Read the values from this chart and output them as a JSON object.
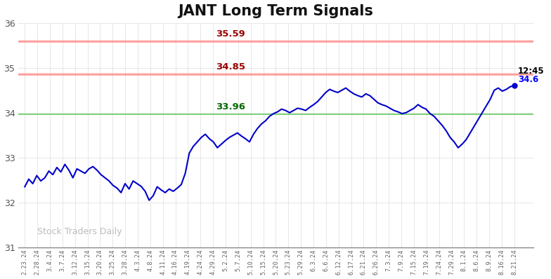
{
  "title": "JANT Long Term Signals",
  "title_fontsize": 15,
  "title_fontweight": "bold",
  "ylim": [
    31,
    36
  ],
  "yticks": [
    31,
    32,
    33,
    34,
    35,
    36
  ],
  "line_color": "#0000cc",
  "line_width": 1.5,
  "hline_green": 33.96,
  "hline_red1": 34.85,
  "hline_red2": 35.59,
  "hline_green_color": "#66cc66",
  "hline_red_color": "#ff9999",
  "hline_red_linecolor": "#ff8888",
  "label_33_96": "33.96",
  "label_34_85": "34.85",
  "label_35_59": "35.59",
  "label_green_color": "#006600",
  "label_red_color": "#990000",
  "annotation_time": "12:45",
  "annotation_price": "34.6",
  "annotation_color_time": "#000000",
  "annotation_color_price": "#0000ff",
  "watermark": "Stock Traders Daily",
  "watermark_color": "#bbbbbb",
  "background_color": "#ffffff",
  "grid_color": "#dddddd",
  "x_labels": [
    "2.23.24",
    "2.28.24",
    "3.4.24",
    "3.7.24",
    "3.12.24",
    "3.15.24",
    "3.20.24",
    "3.25.24",
    "3.28.24",
    "4.3.24",
    "4.8.24",
    "4.11.24",
    "4.16.24",
    "4.19.24",
    "4.24.24",
    "4.29.24",
    "5.2.24",
    "5.7.24",
    "5.10.24",
    "5.15.24",
    "5.20.24",
    "5.23.24",
    "5.29.24",
    "6.3.24",
    "6.6.24",
    "6.12.24",
    "6.17.24",
    "6.21.24",
    "6.26.24",
    "7.3.24",
    "7.9.24",
    "7.15.24",
    "7.19.24",
    "7.24.24",
    "7.29.24",
    "8.1.24",
    "8.6.24",
    "8.9.24",
    "8.16.24",
    "8.21.24"
  ],
  "prices": [
    32.35,
    32.52,
    32.42,
    32.6,
    32.48,
    32.55,
    32.7,
    32.62,
    32.78,
    32.68,
    32.85,
    32.72,
    32.55,
    32.75,
    32.7,
    32.65,
    32.75,
    32.8,
    32.72,
    32.62,
    32.55,
    32.48,
    32.38,
    32.32,
    32.22,
    32.42,
    32.3,
    32.48,
    32.42,
    32.36,
    32.25,
    32.05,
    32.15,
    32.35,
    32.28,
    32.22,
    32.3,
    32.25,
    32.32,
    32.4,
    32.65,
    33.1,
    33.25,
    33.35,
    33.45,
    33.52,
    33.42,
    33.35,
    33.22,
    33.3,
    33.38,
    33.45,
    33.5,
    33.55,
    33.48,
    33.42,
    33.35,
    33.52,
    33.65,
    33.75,
    33.82,
    33.92,
    33.98,
    34.02,
    34.08,
    34.05,
    34.0,
    34.05,
    34.1,
    34.08,
    34.05,
    34.12,
    34.18,
    34.25,
    34.35,
    34.45,
    34.52,
    34.48,
    34.45,
    34.5,
    34.55,
    34.48,
    34.42,
    34.38,
    34.35,
    34.42,
    34.38,
    34.3,
    34.22,
    34.18,
    34.15,
    34.1,
    34.05,
    34.02,
    33.98,
    34.0,
    34.05,
    34.1,
    34.18,
    34.12,
    34.08,
    33.98,
    33.92,
    33.82,
    33.72,
    33.6,
    33.45,
    33.35,
    33.22,
    33.3,
    33.4,
    33.55,
    33.7,
    33.85,
    34.0,
    34.15,
    34.3,
    34.5,
    34.55,
    34.48,
    34.52,
    34.58,
    34.6
  ]
}
